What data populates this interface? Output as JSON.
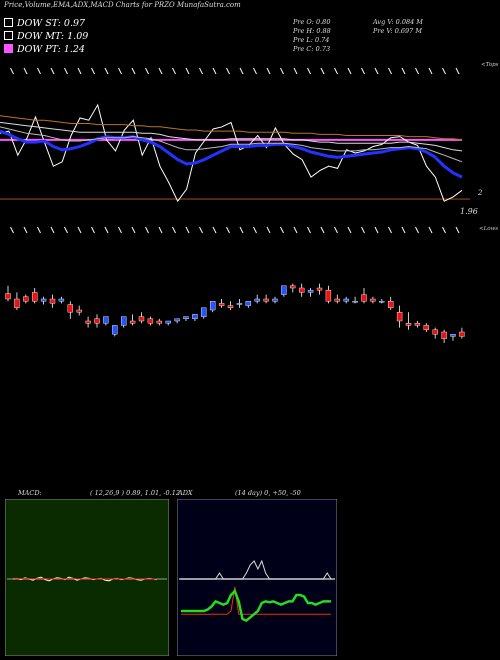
{
  "header": {
    "title": "Price,Volume,EMA,ADX,MACD Charts for PRZO MunafaSutra.com",
    "dow_st": "DOW ST: 0.97",
    "dow_mt": "DOW MT: 1.09",
    "dow_pt": "DOW PT: 1.24",
    "pre_o": "Pre  O: 0.80",
    "pre_h": "Pre  H: 0.88",
    "pre_l": "Pre  L: 0.74",
    "pre_c": "Pre  C: 0.73",
    "avg_v": "Avg V: 0.084  M",
    "pre_v": "Pre  V: 0.697 M"
  },
  "colors": {
    "st_swatch": "#000000",
    "mt_swatch": "#000000",
    "target_line": "#ff55ff",
    "up_candle": "#2255ff",
    "down_candle": "#ee1111",
    "macd_bg": "#0a2a00",
    "adx_bg": "#000018",
    "adx_plus": "#22dd22",
    "adx_minus": "#ee3300"
  },
  "chart_data": [
    {
      "type": "line",
      "panel": "price-ema",
      "labels": {
        "top": "<Tops",
        "bottom": "<Lows",
        "level_a": "2",
        "level_b": "1.96"
      },
      "series": [
        {
          "role": "close",
          "values": [
            2.6,
            2.62,
            2.4,
            2.55,
            2.75,
            2.52,
            2.3,
            2.34,
            2.58,
            2.74,
            2.72,
            2.86,
            2.54,
            2.44,
            2.63,
            2.72,
            2.4,
            2.56,
            2.3,
            2.15,
            1.98,
            2.09,
            2.42,
            2.53,
            2.64,
            2.66,
            2.7,
            2.45,
            2.49,
            2.58,
            2.47,
            2.65,
            2.5,
            2.41,
            2.36,
            2.2,
            2.26,
            2.3,
            2.28,
            2.45,
            2.42,
            2.44,
            2.48,
            2.5,
            2.56,
            2.57,
            2.52,
            2.49,
            2.3,
            2.2,
            1.98,
            2.02,
            2.08
          ]
        },
        {
          "role": "ema-short",
          "values": [
            2.62,
            2.59,
            2.55,
            2.52,
            2.52,
            2.53,
            2.48,
            2.45,
            2.46,
            2.48,
            2.51,
            2.55,
            2.57,
            2.56,
            2.56,
            2.57,
            2.54,
            2.52,
            2.48,
            2.42,
            2.36,
            2.32,
            2.33,
            2.36,
            2.4,
            2.44,
            2.48,
            2.48,
            2.48,
            2.49,
            2.49,
            2.5,
            2.5,
            2.48,
            2.46,
            2.43,
            2.41,
            2.39,
            2.38,
            2.39,
            2.4,
            2.41,
            2.42,
            2.43,
            2.45,
            2.46,
            2.47,
            2.46,
            2.43,
            2.38,
            2.3,
            2.24,
            2.2
          ]
        },
        {
          "role": "ema-mid",
          "values": [
            2.66,
            2.64,
            2.62,
            2.6,
            2.59,
            2.58,
            2.56,
            2.54,
            2.53,
            2.53,
            2.54,
            2.55,
            2.56,
            2.56,
            2.56,
            2.57,
            2.56,
            2.55,
            2.53,
            2.5,
            2.47,
            2.45,
            2.45,
            2.46,
            2.47,
            2.48,
            2.5,
            2.5,
            2.5,
            2.51,
            2.51,
            2.51,
            2.51,
            2.5,
            2.49,
            2.47,
            2.46,
            2.45,
            2.44,
            2.44,
            2.44,
            2.45,
            2.45,
            2.46,
            2.47,
            2.47,
            2.48,
            2.47,
            2.46,
            2.43,
            2.4,
            2.37,
            2.34
          ]
        },
        {
          "role": "ema-long",
          "values": [
            2.7,
            2.69,
            2.68,
            2.67,
            2.66,
            2.65,
            2.64,
            2.63,
            2.62,
            2.61,
            2.61,
            2.61,
            2.61,
            2.61,
            2.61,
            2.61,
            2.6,
            2.6,
            2.59,
            2.57,
            2.56,
            2.55,
            2.54,
            2.54,
            2.54,
            2.54,
            2.55,
            2.55,
            2.55,
            2.55,
            2.55,
            2.55,
            2.55,
            2.54,
            2.54,
            2.53,
            2.52,
            2.52,
            2.51,
            2.51,
            2.51,
            2.51,
            2.51,
            2.51,
            2.51,
            2.52,
            2.52,
            2.51,
            2.5,
            2.49,
            2.47,
            2.45,
            2.44
          ]
        },
        {
          "role": "ema-longest",
          "values": [
            2.76,
            2.75,
            2.74,
            2.73,
            2.72,
            2.72,
            2.71,
            2.7,
            2.69,
            2.69,
            2.69,
            2.68,
            2.68,
            2.68,
            2.68,
            2.67,
            2.67,
            2.66,
            2.66,
            2.65,
            2.64,
            2.63,
            2.63,
            2.62,
            2.62,
            2.62,
            2.62,
            2.62,
            2.61,
            2.61,
            2.61,
            2.61,
            2.61,
            2.6,
            2.6,
            2.6,
            2.59,
            2.59,
            2.59,
            2.58,
            2.58,
            2.58,
            2.58,
            2.58,
            2.58,
            2.58,
            2.57,
            2.57,
            2.57,
            2.56,
            2.55,
            2.55,
            2.54
          ]
        }
      ],
      "target": 2.54,
      "support": 2.0,
      "ylim": [
        1.9,
        2.95
      ]
    },
    {
      "type": "candlestick",
      "panel": "candles",
      "ylim": [
        0.0,
        1.0
      ],
      "candles": [
        [
          0.65,
          0.72,
          0.6,
          0.58
        ],
        [
          0.6,
          0.66,
          0.52,
          0.5
        ],
        [
          0.62,
          0.64,
          0.58,
          0.56
        ],
        [
          0.66,
          0.7,
          0.58,
          0.56
        ],
        [
          0.58,
          0.62,
          0.6,
          0.55
        ],
        [
          0.6,
          0.64,
          0.56,
          0.52
        ],
        [
          0.58,
          0.62,
          0.6,
          0.56
        ],
        [
          0.55,
          0.58,
          0.48,
          0.42
        ],
        [
          0.5,
          0.54,
          0.48,
          0.45
        ],
        [
          0.4,
          0.44,
          0.38,
          0.34
        ],
        [
          0.42,
          0.46,
          0.38,
          0.34
        ],
        [
          0.38,
          0.42,
          0.44,
          0.36
        ],
        [
          0.28,
          0.32,
          0.36,
          0.26
        ],
        [
          0.36,
          0.42,
          0.44,
          0.34
        ],
        [
          0.4,
          0.46,
          0.38,
          0.36
        ],
        [
          0.44,
          0.48,
          0.4,
          0.38
        ],
        [
          0.42,
          0.44,
          0.38,
          0.36
        ],
        [
          0.4,
          0.42,
          0.38,
          0.36
        ],
        [
          0.38,
          0.4,
          0.4,
          0.36
        ],
        [
          0.4,
          0.42,
          0.42,
          0.38
        ],
        [
          0.42,
          0.44,
          0.44,
          0.4
        ],
        [
          0.42,
          0.46,
          0.46,
          0.4
        ],
        [
          0.44,
          0.5,
          0.52,
          0.42
        ],
        [
          0.5,
          0.56,
          0.58,
          0.48
        ],
        [
          0.56,
          0.6,
          0.54,
          0.52
        ],
        [
          0.54,
          0.58,
          0.52,
          0.5
        ],
        [
          0.55,
          0.6,
          0.56,
          0.52
        ],
        [
          0.54,
          0.58,
          0.58,
          0.52
        ],
        [
          0.58,
          0.64,
          0.6,
          0.56
        ],
        [
          0.6,
          0.64,
          0.58,
          0.56
        ],
        [
          0.58,
          0.62,
          0.6,
          0.56
        ],
        [
          0.64,
          0.72,
          0.72,
          0.62
        ],
        [
          0.72,
          0.74,
          0.7,
          0.66
        ],
        [
          0.7,
          0.74,
          0.66,
          0.62
        ],
        [
          0.66,
          0.7,
          0.68,
          0.62
        ],
        [
          0.7,
          0.74,
          0.68,
          0.64
        ],
        [
          0.68,
          0.72,
          0.58,
          0.56
        ],
        [
          0.6,
          0.64,
          0.58,
          0.56
        ],
        [
          0.58,
          0.62,
          0.6,
          0.56
        ],
        [
          0.58,
          0.62,
          0.58,
          0.56
        ],
        [
          0.64,
          0.7,
          0.58,
          0.56
        ],
        [
          0.6,
          0.62,
          0.58,
          0.56
        ],
        [
          0.58,
          0.6,
          0.58,
          0.56
        ],
        [
          0.58,
          0.62,
          0.52,
          0.5
        ],
        [
          0.48,
          0.54,
          0.4,
          0.34
        ],
        [
          0.38,
          0.48,
          0.36,
          0.32
        ],
        [
          0.38,
          0.4,
          0.36,
          0.34
        ],
        [
          0.36,
          0.38,
          0.32,
          0.3
        ],
        [
          0.32,
          0.34,
          0.28,
          0.24
        ],
        [
          0.3,
          0.32,
          0.24,
          0.2
        ],
        [
          0.26,
          0.28,
          0.28,
          0.22
        ],
        [
          0.3,
          0.34,
          0.26,
          0.24
        ]
      ]
    },
    {
      "type": "line",
      "panel": "macd",
      "title": "MACD:",
      "params": "( 12,26,9 ) 0.89, 1.01, -0.12",
      "series": [
        {
          "role": "macd",
          "values": [
            0.5,
            0.6,
            0.4,
            0.7,
            0.5,
            0.3,
            0.6,
            0.8,
            0.4,
            0.2,
            0.5,
            0.7,
            0.6,
            0.4,
            0.8,
            0.6,
            0.3,
            0.5,
            0.7,
            0.6,
            0.4,
            0.5,
            0.6,
            0.3,
            0.2,
            0.5,
            0.6,
            0.4,
            0.5,
            0.7,
            0.6,
            0.4,
            0.3,
            0.5,
            0.6,
            0.5,
            0.4
          ]
        },
        {
          "role": "signal",
          "values": [
            0.6,
            0.6,
            0.55,
            0.6,
            0.55,
            0.5,
            0.55,
            0.6,
            0.55,
            0.5,
            0.5,
            0.55,
            0.55,
            0.5,
            0.6,
            0.6,
            0.5,
            0.5,
            0.55,
            0.55,
            0.5,
            0.5,
            0.55,
            0.5,
            0.45,
            0.5,
            0.55,
            0.5,
            0.5,
            0.6,
            0.55,
            0.5,
            0.45,
            0.5,
            0.55,
            0.5,
            0.5
          ]
        }
      ]
    },
    {
      "type": "line",
      "panel": "adx",
      "title": "ADX",
      "params": "(14  day) 0, +50, -50",
      "series": [
        {
          "role": "adx",
          "values": [
            0,
            0,
            0,
            0,
            0,
            0,
            0,
            0,
            0,
            0,
            0,
            0,
            0,
            0,
            0,
            0,
            0,
            0,
            0,
            0,
            0,
            0,
            0,
            0,
            0,
            0,
            0,
            0,
            0,
            0,
            0,
            0,
            0,
            0,
            0,
            0,
            0,
            0,
            0,
            0
          ]
        },
        {
          "role": "plus-di",
          "values": [
            -40,
            -40,
            -40,
            -40,
            -40,
            -40,
            -40,
            -38,
            -34,
            -28,
            -30,
            -32,
            -30,
            -20,
            -15,
            -28,
            -50,
            -52,
            -48,
            -44,
            -40,
            -30,
            -28,
            -29,
            -28,
            -30,
            -32,
            -30,
            -28,
            -28,
            -20,
            -20,
            -22,
            -30,
            -30,
            -32,
            -30,
            -28,
            -28,
            -28
          ]
        },
        {
          "role": "minus-di",
          "values": [
            -44,
            -44,
            -44,
            -44,
            -44,
            -44,
            -44,
            -44,
            -44,
            -44,
            -44,
            -44,
            -44,
            -40,
            -10,
            -44,
            -44,
            -44,
            -44,
            -44,
            -44,
            -44,
            -44,
            -44,
            -44,
            -44,
            -44,
            -44,
            -44,
            -44,
            -44,
            -44,
            -44,
            -44,
            -44,
            -44,
            -44,
            -44,
            -44,
            -44
          ]
        },
        {
          "role": "spike",
          "values": [
            0,
            0,
            0,
            0,
            0,
            0,
            0,
            0,
            0,
            0,
            6,
            0,
            0,
            0,
            0,
            0,
            0,
            6,
            14,
            18,
            10,
            18,
            6,
            0,
            0,
            0,
            0,
            0,
            0,
            0,
            0,
            0,
            0,
            0,
            0,
            0,
            0,
            0,
            6,
            0
          ]
        }
      ]
    }
  ]
}
